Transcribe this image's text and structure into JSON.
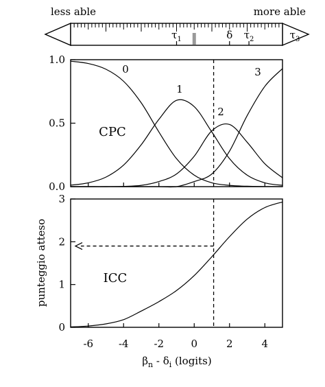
{
  "ruler": {
    "left_label": "less able",
    "right_label": "more able",
    "thresholds": [
      {
        "symbol": "τ",
        "sub": "1",
        "value": -1.0
      },
      {
        "symbol": "δ",
        "sub": "",
        "value": 2.0
      },
      {
        "symbol": "τ",
        "sub": "2",
        "value": 3.1
      },
      {
        "symbol": "τ",
        "sub": "3",
        "value": 5.3
      }
    ],
    "marker_value": 0.0
  },
  "chart_data": [
    {
      "type": "line",
      "panel_label": "CPC",
      "xlim": [
        -7,
        5
      ],
      "ylim": [
        0,
        1
      ],
      "yticks": [
        "0.0",
        "0.5",
        "1.0"
      ],
      "series": [
        {
          "name": "0",
          "x": [
            -7,
            -6,
            -5,
            -4,
            -3,
            -2,
            -1,
            0,
            1,
            2,
            3,
            4,
            5
          ],
          "y": [
            0.988,
            0.97,
            0.925,
            0.83,
            0.66,
            0.43,
            0.22,
            0.09,
            0.03,
            0.01,
            0.003,
            0.001,
            0.0
          ]
        },
        {
          "name": "1",
          "x": [
            -7,
            -6,
            -5,
            -4,
            -3,
            -2,
            -1,
            0,
            1,
            2,
            3,
            4,
            5
          ],
          "y": [
            0.012,
            0.03,
            0.075,
            0.17,
            0.33,
            0.53,
            0.68,
            0.63,
            0.43,
            0.22,
            0.09,
            0.03,
            0.01
          ]
        },
        {
          "name": "2",
          "x": [
            -7,
            -6,
            -5,
            -4,
            -3,
            -2,
            -1,
            0,
            1,
            2,
            3,
            4,
            5
          ],
          "y": [
            0.0,
            0.0,
            0.0,
            0.002,
            0.01,
            0.04,
            0.1,
            0.24,
            0.44,
            0.49,
            0.35,
            0.18,
            0.07
          ]
        },
        {
          "name": "3",
          "x": [
            -7,
            -6,
            -5,
            -4,
            -3,
            -2,
            -1,
            0,
            1,
            2,
            3,
            4,
            5
          ],
          "y": [
            0.0,
            0.0,
            0.0,
            0.0,
            0.0,
            0.0,
            0.0,
            0.04,
            0.1,
            0.28,
            0.56,
            0.79,
            0.93
          ]
        }
      ],
      "vline_x": 1.1
    },
    {
      "type": "line",
      "panel_label": "ICC",
      "xlim": [
        -7,
        5
      ],
      "ylim": [
        0,
        3
      ],
      "yticks": [
        "0",
        "1",
        "2",
        "3"
      ],
      "xticks": [
        "-6",
        "-4",
        "-2",
        "0",
        "2",
        "4"
      ],
      "ylabel": "punteggio atteso",
      "xlabel": {
        "b": "β",
        "bsub": "n",
        "mid": " - ",
        "d": "δ",
        "dsub": "i",
        "rest": " (logits)"
      },
      "series": [
        {
          "x": [
            -7,
            -6,
            -5,
            -4,
            -3,
            -2,
            -1,
            0,
            1,
            2,
            3,
            4,
            5
          ],
          "y": [
            0.01,
            0.03,
            0.08,
            0.18,
            0.38,
            0.6,
            0.86,
            1.21,
            1.65,
            2.12,
            2.53,
            2.8,
            2.93
          ]
        }
      ],
      "vline_x": 1.1,
      "arrow_y": 1.9
    }
  ]
}
